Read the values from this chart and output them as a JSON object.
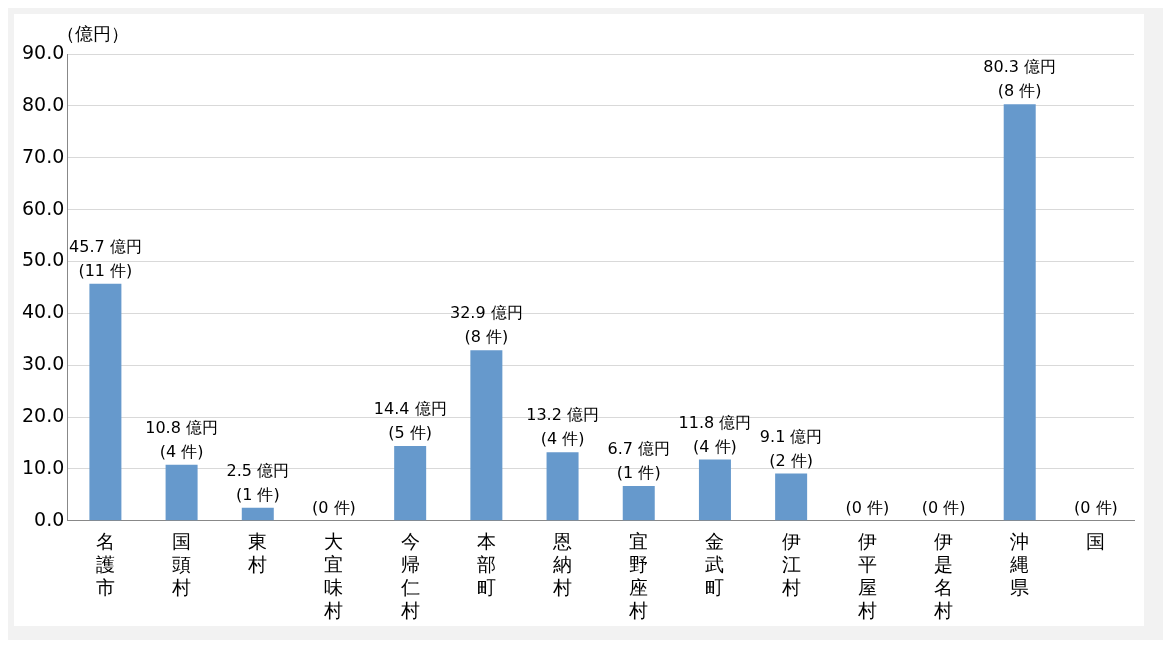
{
  "chart_data": {
    "type": "bar",
    "ylabel": "（億円）",
    "categories": [
      "名護市",
      "国頭村",
      "東村",
      "大宜味村",
      "今帰仁村",
      "本部町",
      "恩納村",
      "宜野座村",
      "金武町",
      "伊江村",
      "伊平屋村",
      "伊是名村",
      "沖縄県",
      "国"
    ],
    "values": [
      45.7,
      10.8,
      2.5,
      0,
      14.4,
      32.9,
      13.2,
      6.7,
      11.8,
      9.1,
      0,
      0,
      80.3,
      0
    ],
    "value_labels": [
      "45.7 億円\n(11 件)",
      "10.8 億円\n(4 件)",
      "2.5 億円\n(1 件)",
      "(0 件)",
      "14.4 億円\n(5 件)",
      "32.9 億円\n(8 件)",
      "13.2 億円\n(4 件)",
      "6.7 億円\n(1 件)",
      "11.8 億円\n(4 件)",
      "9.1 億円\n(2 件)",
      "(0 件)",
      "(0 件)",
      "80.3 億円\n(8 件)",
      "(0 件)"
    ],
    "color": "#6699cc",
    "ylim": [
      0,
      90
    ],
    "yticks": [
      {
        "value": 0,
        "label": "0.0"
      },
      {
        "value": 10,
        "label": "10.0"
      },
      {
        "value": 20,
        "label": "20.0"
      },
      {
        "value": 30,
        "label": "30.0"
      },
      {
        "value": 40,
        "label": "40.0"
      },
      {
        "value": 50,
        "label": "50.0"
      },
      {
        "value": 60,
        "label": "60.0"
      },
      {
        "value": 70,
        "label": "70.0"
      },
      {
        "value": 80,
        "label": "80.0"
      },
      {
        "value": 90,
        "label": "90.0"
      }
    ],
    "grid": true
  }
}
